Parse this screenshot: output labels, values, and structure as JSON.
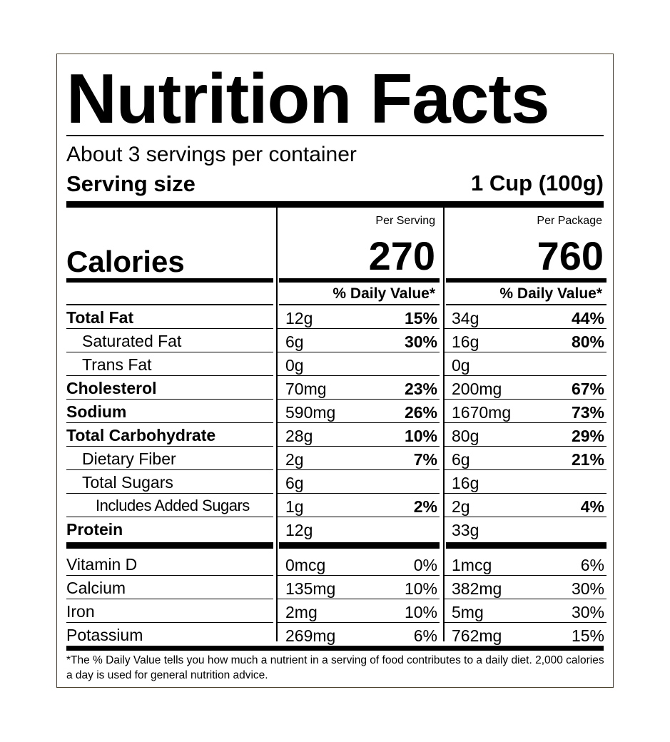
{
  "title": "Nutrition Facts",
  "servings_per_container": "About 3 servings per container",
  "serving_size_label": "Serving size",
  "serving_size_value": "1 Cup (100g)",
  "calories_label": "Calories",
  "columns": [
    {
      "heading": "Per Serving",
      "calories": "270",
      "dv_heading": "% Daily Value*"
    },
    {
      "heading": "Per Package",
      "calories": "760",
      "dv_heading": "% Daily Value*"
    }
  ],
  "nutrients": [
    {
      "name": "Total Fat",
      "serving": {
        "amount": "12g",
        "dv": "15%"
      },
      "package": {
        "amount": "34g",
        "dv": "44%"
      }
    },
    {
      "name": "Saturated Fat",
      "serving": {
        "amount": "6g",
        "dv": "30%"
      },
      "package": {
        "amount": "16g",
        "dv": "80%"
      }
    },
    {
      "name": "Trans Fat",
      "serving": {
        "amount": "0g",
        "dv": ""
      },
      "package": {
        "amount": "0g",
        "dv": ""
      }
    },
    {
      "name": "Cholesterol",
      "serving": {
        "amount": "70mg",
        "dv": "23%"
      },
      "package": {
        "amount": "200mg",
        "dv": "67%"
      }
    },
    {
      "name": "Sodium",
      "serving": {
        "amount": "590mg",
        "dv": "26%"
      },
      "package": {
        "amount": "1670mg",
        "dv": "73%"
      }
    },
    {
      "name": "Total Carbohydrate",
      "serving": {
        "amount": "28g",
        "dv": "10%"
      },
      "package": {
        "amount": "80g",
        "dv": "29%"
      }
    },
    {
      "name": "Dietary Fiber",
      "serving": {
        "amount": "2g",
        "dv": "7%"
      },
      "package": {
        "amount": "6g",
        "dv": "21%"
      }
    },
    {
      "name": "Total Sugars",
      "serving": {
        "amount": "6g",
        "dv": ""
      },
      "package": {
        "amount": "16g",
        "dv": ""
      }
    },
    {
      "name": "Includes Added Sugars",
      "serving": {
        "amount": "1g",
        "dv": "2%"
      },
      "package": {
        "amount": "2g",
        "dv": "4%"
      }
    },
    {
      "name": "Protein",
      "serving": {
        "amount": "12g",
        "dv": ""
      },
      "package": {
        "amount": "33g",
        "dv": ""
      }
    }
  ],
  "vitamins": [
    {
      "name": "Vitamin D",
      "serving": {
        "amount": "0mcg",
        "dv": "0%"
      },
      "package": {
        "amount": "1mcg",
        "dv": "6%"
      }
    },
    {
      "name": "Calcium",
      "serving": {
        "amount": "135mg",
        "dv": "10%"
      },
      "package": {
        "amount": "382mg",
        "dv": "30%"
      }
    },
    {
      "name": "Iron",
      "serving": {
        "amount": "2mg",
        "dv": "10%"
      },
      "package": {
        "amount": "5mg",
        "dv": "30%"
      }
    },
    {
      "name": "Potassium",
      "serving": {
        "amount": "269mg",
        "dv": "6%"
      },
      "package": {
        "amount": "762mg",
        "dv": "15%"
      }
    }
  ],
  "footnote": "*The % Daily Value tells you how much a nutrient in a serving of food contributes to a daily diet. 2,000 calories a day is used for general nutrition advice."
}
